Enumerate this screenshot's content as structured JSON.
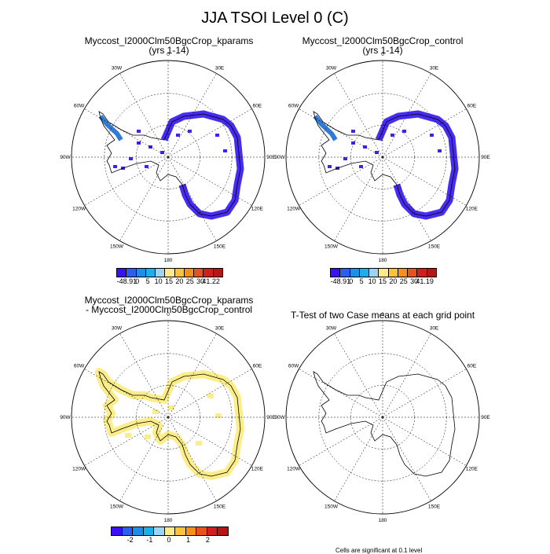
{
  "title": "JJA TSOI Level 0 (C)",
  "colors": {
    "coast": "#000000",
    "grid": "#000000",
    "land_fill_top": "#3d22f0",
    "peninsula_fill": "#2f7bd6",
    "diff_fill": "#fbee8a"
  },
  "panels": [
    {
      "title": "Myccost_I2000Clm50BgcCrop_kparams",
      "subtitle": "(yrs 1-14)",
      "colorbar": {
        "colors": [
          "#3a10f5",
          "#2b5ff0",
          "#1c8fe8",
          "#19b0ec",
          "#9fd3f2",
          "#ffe98a",
          "#fdc23a",
          "#f5901d",
          "#e8521c",
          "#d21e1e",
          "#b81616"
        ],
        "labels": [
          "-48.91",
          "0",
          "5",
          "10",
          "15",
          "20",
          "25",
          "30",
          "41.22"
        ]
      }
    },
    {
      "title": "Myccost_I2000Clm50BgcCrop_control",
      "subtitle": "(yrs 1-14)",
      "colorbar": {
        "colors": [
          "#3a10f5",
          "#2b5ff0",
          "#1c8fe8",
          "#19b0ec",
          "#9fd3f2",
          "#ffe98a",
          "#fdc23a",
          "#f5901d",
          "#e8521c",
          "#d21e1e",
          "#b81616"
        ],
        "labels": [
          "-48.91",
          "0",
          "5",
          "10",
          "15",
          "20",
          "25",
          "30",
          "41.19"
        ]
      }
    },
    {
      "title": "Myccost_I2000Clm50BgcCrop_kparams",
      "subtitle": "- Myccost_I2000Clm50BgcCrop_control",
      "colorbar": {
        "colors": [
          "#3a10f5",
          "#2b5ff0",
          "#1c8fe8",
          "#19b0ec",
          "#9fd3f2",
          "#ffe98a",
          "#fdc23a",
          "#f5901d",
          "#e8521c",
          "#d21e1e",
          "#b81616"
        ],
        "labels": [
          "-2",
          "-1",
          "0",
          "1",
          "2"
        ]
      }
    },
    {
      "title": "T-Test of two Case means at each grid point",
      "footnote": "Cells are significant at 0.1 level"
    }
  ],
  "map_labels": [
    "0",
    "30E",
    "60E",
    "90E",
    "120E",
    "150E",
    "180",
    "150W",
    "120W",
    "90W",
    "60W",
    "30W"
  ]
}
